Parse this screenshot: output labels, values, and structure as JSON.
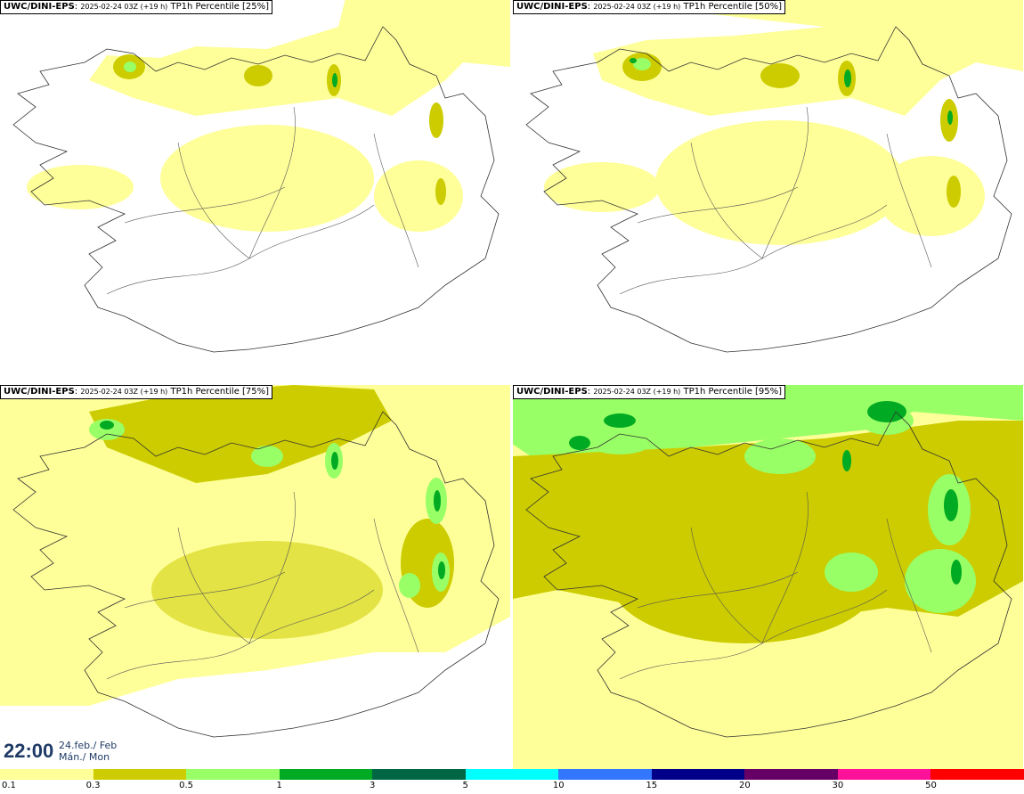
{
  "panels": [
    {
      "source": "UWC/DINI-EPS",
      "run": "2025-02-24 03Z (+19 h)",
      "field": "TP1h Percentile [25%]",
      "percentile": 25
    },
    {
      "source": "UWC/DINI-EPS",
      "run": "2025-02-24 03Z (+19 h)",
      "field": "TP1h Percentile [50%]",
      "percentile": 50
    },
    {
      "source": "UWC/DINI-EPS",
      "run": "2025-02-24 03Z (+19 h)",
      "field": "TP1h Percentile [75%]",
      "percentile": 75
    },
    {
      "source": "UWC/DINI-EPS",
      "run": "2025-02-24 03Z (+19 h)",
      "field": "TP1h Percentile [95%]",
      "percentile": 95
    }
  ],
  "valid_time": {
    "time": "22:00",
    "date_line1": "24.feb./ Feb",
    "date_line2": "Mán./ Mon"
  },
  "legend": {
    "colors": [
      "#ffff99",
      "#cccc00",
      "#99ff66",
      "#00aa22",
      "#006644",
      "#00ffff",
      "#3377ff",
      "#000088",
      "#660066",
      "#ff1199",
      "#ff0000"
    ],
    "ticks": [
      "0.1",
      "0.3",
      "0.5",
      "1",
      "3",
      "5",
      "10",
      "15",
      "20",
      "30",
      "50"
    ]
  }
}
